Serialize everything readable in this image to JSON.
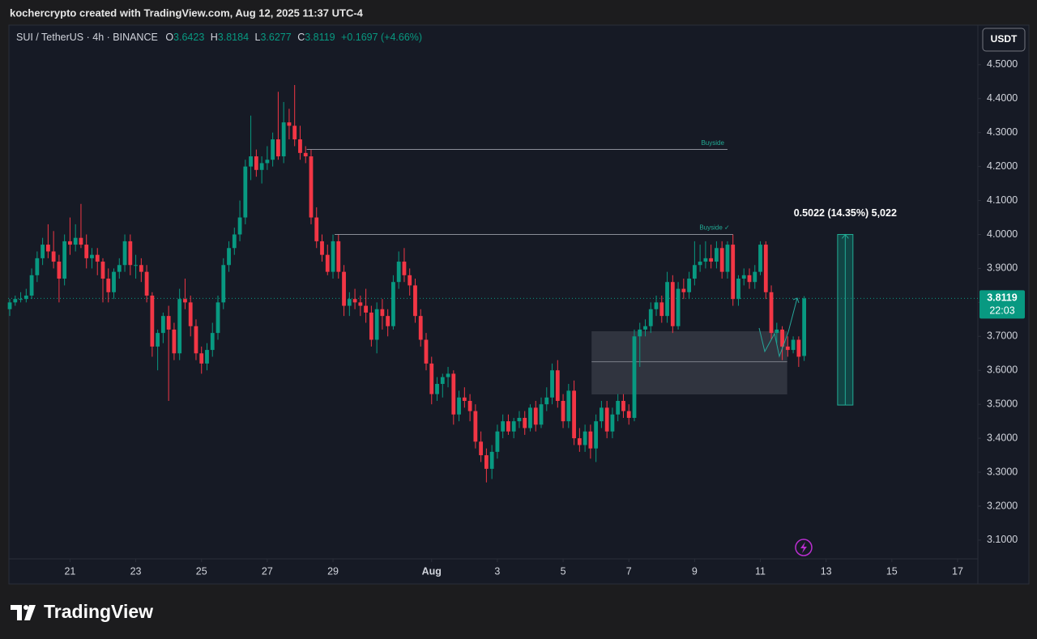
{
  "chart_data": {
    "type": "candlestick",
    "attribution": "kochercrypto created with TradingView.com, Aug 12, 2025 11:37 UTC-4",
    "symbol": "SUI / TetherUS · 4h · BINANCE",
    "ohlc_labels": [
      "O",
      "H",
      "L",
      "C"
    ],
    "change": "+0.1697 (+4.66%)",
    "currency": "USDT",
    "countdown": "22:03",
    "brand": "TradingView",
    "up_color": "#089981",
    "down_color": "#f23645",
    "grid": false,
    "xlim": [
      -0.3,
      176.7
    ],
    "ylim": [
      3.045,
      4.614
    ],
    "yticks": [
      {
        "value": 4.5,
        "label": "4.5000"
      },
      {
        "value": 4.4,
        "label": "4.4000"
      },
      {
        "value": 4.3,
        "label": "4.3000"
      },
      {
        "value": 4.2,
        "label": "4.2000"
      },
      {
        "value": 4.1,
        "label": "4.1000"
      },
      {
        "value": 4.0,
        "label": "4.0000"
      },
      {
        "value": 3.9,
        "label": "3.9000"
      },
      {
        "value": 3.8,
        "label": "3.8000"
      },
      {
        "value": 3.7,
        "label": "3.7000"
      },
      {
        "value": 3.6,
        "label": "3.6000"
      },
      {
        "value": 3.5,
        "label": "3.5000"
      },
      {
        "value": 3.4,
        "label": "3.4000"
      },
      {
        "value": 3.3,
        "label": "3.3000"
      },
      {
        "value": 3.2,
        "label": "3.2000"
      },
      {
        "value": 3.1,
        "label": "3.1000"
      }
    ],
    "xticks": [
      {
        "value": 11,
        "label": "21"
      },
      {
        "value": 23,
        "label": "23"
      },
      {
        "value": 35,
        "label": "25"
      },
      {
        "value": 47,
        "label": "27"
      },
      {
        "value": 59,
        "label": "29"
      },
      {
        "value": 77,
        "label": "Aug"
      },
      {
        "value": 89,
        "label": "3"
      },
      {
        "value": 101,
        "label": "5"
      },
      {
        "value": 113,
        "label": "7"
      },
      {
        "value": 125,
        "label": "9"
      },
      {
        "value": 137,
        "label": "11"
      },
      {
        "value": 149,
        "label": "13"
      },
      {
        "value": 161,
        "label": "15"
      },
      {
        "value": 173,
        "label": "17"
      }
    ],
    "ohlc": [
      [
        3.78,
        3.81,
        3.76,
        3.8
      ],
      [
        3.8,
        3.82,
        3.79,
        3.81
      ],
      [
        3.81,
        3.83,
        3.8,
        3.81
      ],
      [
        3.81,
        3.84,
        3.8,
        3.82
      ],
      [
        3.82,
        3.9,
        3.81,
        3.88
      ],
      [
        3.88,
        3.95,
        3.86,
        3.93
      ],
      [
        3.93,
        3.99,
        3.91,
        3.97
      ],
      [
        3.97,
        4.03,
        3.93,
        3.95
      ],
      [
        3.95,
        4.01,
        3.9,
        3.92
      ],
      [
        3.92,
        3.94,
        3.8,
        3.87
      ],
      [
        3.87,
        4.0,
        3.85,
        3.98
      ],
      [
        3.98,
        4.05,
        3.94,
        3.97
      ],
      [
        3.97,
        4.03,
        3.95,
        3.99
      ],
      [
        3.99,
        4.09,
        3.96,
        3.97
      ],
      [
        3.97,
        4.0,
        3.9,
        3.93
      ],
      [
        3.93,
        3.96,
        3.9,
        3.94
      ],
      [
        3.94,
        3.96,
        3.88,
        3.92
      ],
      [
        3.92,
        3.93,
        3.8,
        3.87
      ],
      [
        3.87,
        3.9,
        3.8,
        3.83
      ],
      [
        3.83,
        3.9,
        3.81,
        3.89
      ],
      [
        3.89,
        3.93,
        3.87,
        3.91
      ],
      [
        3.91,
        4.0,
        3.89,
        3.98
      ],
      [
        3.98,
        4.0,
        3.88,
        3.91
      ],
      [
        3.91,
        3.94,
        3.87,
        3.91
      ],
      [
        3.91,
        3.93,
        3.86,
        3.89
      ],
      [
        3.89,
        3.91,
        3.8,
        3.82
      ],
      [
        3.82,
        3.83,
        3.64,
        3.67
      ],
      [
        3.67,
        3.72,
        3.6,
        3.71
      ],
      [
        3.71,
        3.77,
        3.68,
        3.76
      ],
      [
        3.76,
        3.79,
        3.51,
        3.72
      ],
      [
        3.72,
        3.74,
        3.63,
        3.65
      ],
      [
        3.65,
        3.84,
        3.63,
        3.81
      ],
      [
        3.81,
        3.87,
        3.78,
        3.8
      ],
      [
        3.8,
        3.82,
        3.7,
        3.73
      ],
      [
        3.73,
        3.75,
        3.63,
        3.65
      ],
      [
        3.65,
        3.67,
        3.59,
        3.62
      ],
      [
        3.62,
        3.68,
        3.6,
        3.66
      ],
      [
        3.66,
        3.74,
        3.64,
        3.71
      ],
      [
        3.71,
        3.82,
        3.69,
        3.8
      ],
      [
        3.8,
        3.93,
        3.78,
        3.91
      ],
      [
        3.91,
        3.98,
        3.89,
        3.96
      ],
      [
        3.96,
        4.02,
        3.94,
        4.0
      ],
      [
        4.0,
        4.1,
        3.98,
        4.05
      ],
      [
        4.05,
        4.22,
        4.03,
        4.2
      ],
      [
        4.2,
        4.35,
        4.16,
        4.23
      ],
      [
        4.23,
        4.25,
        4.17,
        4.19
      ],
      [
        4.19,
        4.23,
        4.15,
        4.21
      ],
      [
        4.21,
        4.26,
        4.19,
        4.22
      ],
      [
        4.22,
        4.3,
        4.2,
        4.28
      ],
      [
        4.28,
        4.42,
        4.22,
        4.23
      ],
      [
        4.23,
        4.39,
        4.21,
        4.33
      ],
      [
        4.33,
        4.37,
        4.28,
        4.32
      ],
      [
        4.32,
        4.44,
        4.26,
        4.28
      ],
      [
        4.28,
        4.32,
        4.22,
        4.24
      ],
      [
        4.24,
        4.26,
        4.21,
        4.23
      ],
      [
        4.23,
        4.25,
        4.03,
        4.05
      ],
      [
        4.05,
        4.08,
        3.96,
        3.98
      ],
      [
        3.98,
        4.0,
        3.92,
        3.94
      ],
      [
        3.94,
        3.97,
        3.88,
        3.89
      ],
      [
        3.89,
        4.0,
        3.87,
        3.98
      ],
      [
        3.98,
        4.0,
        3.87,
        3.89
      ],
      [
        3.89,
        3.91,
        3.76,
        3.79
      ],
      [
        3.79,
        3.83,
        3.76,
        3.81
      ],
      [
        3.81,
        3.84,
        3.78,
        3.8
      ],
      [
        3.8,
        3.82,
        3.76,
        3.79
      ],
      [
        3.79,
        3.84,
        3.74,
        3.77
      ],
      [
        3.77,
        3.79,
        3.67,
        3.69
      ],
      [
        3.69,
        3.8,
        3.65,
        3.78
      ],
      [
        3.78,
        3.81,
        3.72,
        3.76
      ],
      [
        3.76,
        3.78,
        3.7,
        3.73
      ],
      [
        3.73,
        3.88,
        3.72,
        3.86
      ],
      [
        3.86,
        3.95,
        3.84,
        3.92
      ],
      [
        3.92,
        3.96,
        3.86,
        3.88
      ],
      [
        3.88,
        3.9,
        3.82,
        3.85
      ],
      [
        3.85,
        3.87,
        3.74,
        3.76
      ],
      [
        3.76,
        3.78,
        3.67,
        3.69
      ],
      [
        3.69,
        3.71,
        3.6,
        3.62
      ],
      [
        3.62,
        3.64,
        3.5,
        3.53
      ],
      [
        3.53,
        3.58,
        3.51,
        3.56
      ],
      [
        3.56,
        3.59,
        3.52,
        3.58
      ],
      [
        3.58,
        3.61,
        3.55,
        3.59
      ],
      [
        3.59,
        3.6,
        3.44,
        3.47
      ],
      [
        3.47,
        3.54,
        3.45,
        3.52
      ],
      [
        3.52,
        3.55,
        3.49,
        3.51
      ],
      [
        3.51,
        3.53,
        3.45,
        3.48
      ],
      [
        3.48,
        3.5,
        3.37,
        3.39
      ],
      [
        3.39,
        3.42,
        3.33,
        3.35
      ],
      [
        3.35,
        3.37,
        3.27,
        3.31
      ],
      [
        3.31,
        3.38,
        3.28,
        3.36
      ],
      [
        3.36,
        3.44,
        3.34,
        3.42
      ],
      [
        3.42,
        3.47,
        3.4,
        3.45
      ],
      [
        3.45,
        3.47,
        3.41,
        3.42
      ],
      [
        3.42,
        3.46,
        3.4,
        3.45
      ],
      [
        3.45,
        3.48,
        3.43,
        3.46
      ],
      [
        3.46,
        3.48,
        3.41,
        3.43
      ],
      [
        3.43,
        3.5,
        3.42,
        3.49
      ],
      [
        3.49,
        3.51,
        3.42,
        3.44
      ],
      [
        3.44,
        3.52,
        3.43,
        3.5
      ],
      [
        3.5,
        3.55,
        3.48,
        3.52
      ],
      [
        3.52,
        3.62,
        3.5,
        3.6
      ],
      [
        3.6,
        3.63,
        3.49,
        3.51
      ],
      [
        3.51,
        3.53,
        3.43,
        3.45
      ],
      [
        3.45,
        3.56,
        3.43,
        3.54
      ],
      [
        3.54,
        3.57,
        3.38,
        3.4
      ],
      [
        3.4,
        3.43,
        3.36,
        3.38
      ],
      [
        3.38,
        3.44,
        3.36,
        3.42
      ],
      [
        3.42,
        3.44,
        3.34,
        3.37
      ],
      [
        3.37,
        3.47,
        3.33,
        3.45
      ],
      [
        3.45,
        3.51,
        3.43,
        3.49
      ],
      [
        3.49,
        3.51,
        3.4,
        3.42
      ],
      [
        3.42,
        3.49,
        3.4,
        3.47
      ],
      [
        3.47,
        3.53,
        3.45,
        3.51
      ],
      [
        3.51,
        3.53,
        3.46,
        3.48
      ],
      [
        3.48,
        3.5,
        3.44,
        3.46
      ],
      [
        3.46,
        3.72,
        3.45,
        3.7
      ],
      [
        3.7,
        3.74,
        3.61,
        3.72
      ],
      [
        3.72,
        3.75,
        3.7,
        3.73
      ],
      [
        3.73,
        3.8,
        3.71,
        3.78
      ],
      [
        3.78,
        3.82,
        3.76,
        3.8
      ],
      [
        3.8,
        3.82,
        3.74,
        3.76
      ],
      [
        3.76,
        3.89,
        3.74,
        3.86
      ],
      [
        3.86,
        3.88,
        3.71,
        3.73
      ],
      [
        3.73,
        3.86,
        3.72,
        3.84
      ],
      [
        3.84,
        3.87,
        3.81,
        3.83
      ],
      [
        3.83,
        3.89,
        3.81,
        3.87
      ],
      [
        3.87,
        3.98,
        3.85,
        3.91
      ],
      [
        3.91,
        3.97,
        3.89,
        3.92
      ],
      [
        3.92,
        3.98,
        3.9,
        3.93
      ],
      [
        3.93,
        3.97,
        3.9,
        3.92
      ],
      [
        3.92,
        3.98,
        3.9,
        3.96
      ],
      [
        3.96,
        3.98,
        3.87,
        3.89
      ],
      [
        3.89,
        3.98,
        3.87,
        3.97
      ],
      [
        3.97,
        4.0,
        3.79,
        3.81
      ],
      [
        3.81,
        3.88,
        3.79,
        3.87
      ],
      [
        3.87,
        3.9,
        3.85,
        3.88
      ],
      [
        3.88,
        3.9,
        3.84,
        3.86
      ],
      [
        3.86,
        3.91,
        3.84,
        3.89
      ],
      [
        3.89,
        3.98,
        3.88,
        3.97
      ],
      [
        3.97,
        3.98,
        3.81,
        3.83
      ],
      [
        3.83,
        3.85,
        3.69,
        3.71
      ],
      [
        3.71,
        3.74,
        3.68,
        3.72
      ],
      [
        3.72,
        3.73,
        3.63,
        3.67
      ],
      [
        3.67,
        3.7,
        3.64,
        3.66
      ],
      [
        3.66,
        3.7,
        3.65,
        3.69
      ],
      [
        3.69,
        3.7,
        3.61,
        3.64
      ],
      [
        3.6423,
        3.8184,
        3.6277,
        3.8119
      ]
    ],
    "levels": [
      {
        "label": "Buyside",
        "price": 4.25,
        "start": 54.2,
        "end": 131
      },
      {
        "label": "Buyside ✓",
        "price": 4.0,
        "start": 59.3,
        "end": 132
      }
    ],
    "zone": {
      "top": 3.715,
      "bottom": 3.529,
      "mid": 3.625,
      "start": 106.2,
      "end": 141.9
    },
    "measure": {
      "label": "0.5022 (14.35%) 5,022",
      "top": 4.0,
      "bottom": 3.4978,
      "start": 151.1,
      "end": 153.9
    }
  }
}
